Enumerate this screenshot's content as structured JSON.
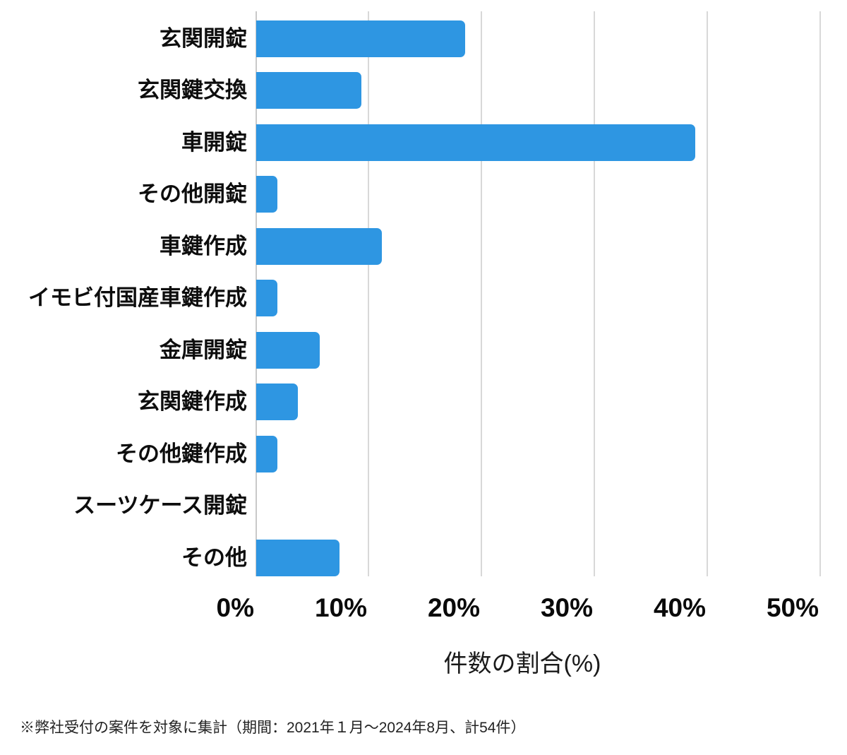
{
  "footnote": "※弊社受付の案件を対象に集計（期間：2021年１月～2024年8月、計54件）",
  "colors": {
    "bar": "#2e96e2",
    "gridline": "#d8d8d8",
    "axis_line": "#c9c9c9",
    "label_text": "#0d0d0d",
    "tick_text": "#0a0a0a",
    "footnote_text": "#222222",
    "background": "#ffffff"
  },
  "chart_data": {
    "type": "bar",
    "orientation": "horizontal",
    "title": "",
    "xlabel": "件数の割合(%)",
    "ylabel": "",
    "categories": [
      "玄関開錠",
      "玄関鍵交換",
      "車開錠",
      "その他開錠",
      "車鍵作成",
      "イモビ付国産車鍵作成",
      "金庫開錠",
      "玄関鍵作成",
      "その他鍵作成",
      "スーツケース開錠",
      "その他"
    ],
    "values": [
      18.5,
      9.3,
      38.9,
      1.9,
      11.1,
      1.9,
      5.6,
      3.7,
      1.9,
      0,
      7.4
    ],
    "xlim": [
      0,
      50
    ],
    "x_ticks": [
      "0%",
      "10%",
      "20%",
      "30%",
      "40%",
      "50%"
    ],
    "grid": true,
    "legend": false
  }
}
